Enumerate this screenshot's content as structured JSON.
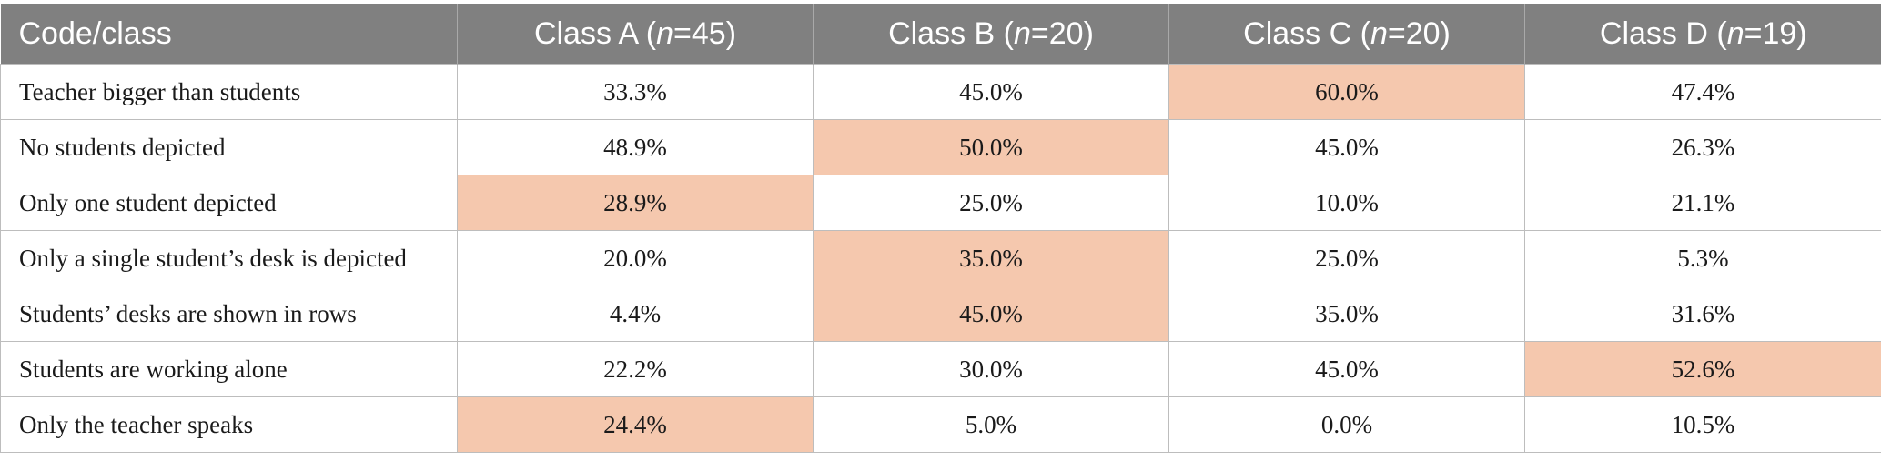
{
  "table": {
    "header": {
      "first": "Code/class",
      "classes": [
        {
          "name": "Class A (",
          "n_var": "n",
          "n_val": "=45)"
        },
        {
          "name": "Class B (",
          "n_var": "n",
          "n_val": "=20)"
        },
        {
          "name": "Class C (",
          "n_var": "n",
          "n_val": "=20)"
        },
        {
          "name": "Class D (",
          "n_var": "n",
          "n_val": "=19)"
        }
      ]
    },
    "highlight_color": "#f5c8ae",
    "header_color": "#808080",
    "rows": [
      {
        "label": "Teacher bigger than students",
        "values": [
          "33.3%",
          "45.0%",
          "60.0%",
          "47.4%"
        ],
        "highlight": [
          false,
          false,
          true,
          false
        ]
      },
      {
        "label": "No students depicted",
        "values": [
          "48.9%",
          "50.0%",
          "45.0%",
          "26.3%"
        ],
        "highlight": [
          false,
          true,
          false,
          false
        ]
      },
      {
        "label": "Only one student depicted",
        "values": [
          "28.9%",
          "25.0%",
          "10.0%",
          "21.1%"
        ],
        "highlight": [
          true,
          false,
          false,
          false
        ]
      },
      {
        "label": "Only a single student’s desk is depicted",
        "values": [
          "20.0%",
          "35.0%",
          "25.0%",
          "5.3%"
        ],
        "highlight": [
          false,
          true,
          false,
          false
        ]
      },
      {
        "label": "Students’ desks are shown in rows",
        "values": [
          "4.4%",
          "45.0%",
          "35.0%",
          "31.6%"
        ],
        "highlight": [
          false,
          true,
          false,
          false
        ]
      },
      {
        "label": "Students are working alone",
        "values": [
          "22.2%",
          "30.0%",
          "45.0%",
          "52.6%"
        ],
        "highlight": [
          false,
          false,
          false,
          true
        ]
      },
      {
        "label": "Only the teacher speaks",
        "values": [
          "24.4%",
          "5.0%",
          "0.0%",
          "10.5%"
        ],
        "highlight": [
          true,
          false,
          false,
          false
        ]
      }
    ]
  }
}
